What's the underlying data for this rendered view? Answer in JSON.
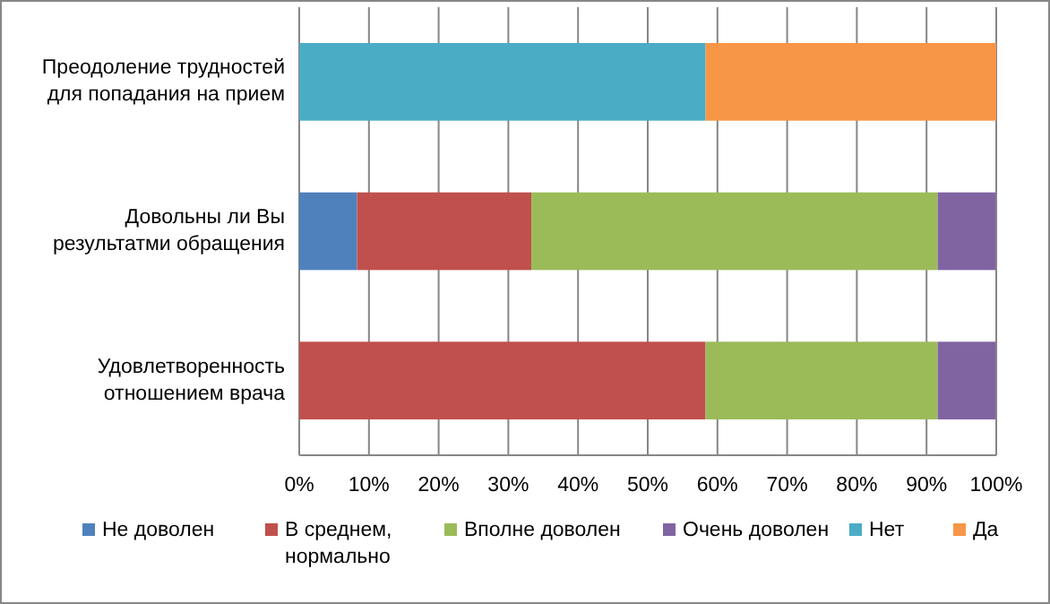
{
  "chart_data": {
    "type": "bar",
    "orientation": "horizontal",
    "stacked": true,
    "categories": [
      "Преодоление трудностей для попадания на прием",
      "Довольны ли Вы результатми обращения",
      "Удовлетворенность отношением врача"
    ],
    "series": [
      {
        "name": "Не доволен",
        "color": "#4f81bd",
        "values": [
          0,
          8.3,
          0
        ]
      },
      {
        "name": "В среднем, нормально",
        "color": "#c0504d",
        "values": [
          0,
          25,
          58.3
        ]
      },
      {
        "name": "Вполне доволен",
        "color": "#9bbb59",
        "values": [
          0,
          58.3,
          33.3
        ]
      },
      {
        "name": "Очень доволен",
        "color": "#8064a2",
        "values": [
          0,
          8.3,
          8.3
        ]
      },
      {
        "name": "Нет",
        "color": "#4bacc6",
        "values": [
          58.3,
          0,
          0
        ]
      },
      {
        "name": "Да",
        "color": "#f79646",
        "values": [
          41.7,
          0,
          0
        ]
      }
    ],
    "xlim": [
      0,
      100
    ],
    "xticks": [
      {
        "value": 0,
        "label": "0%"
      },
      {
        "value": 10,
        "label": "10%"
      },
      {
        "value": 20,
        "label": "20%"
      },
      {
        "value": 30,
        "label": "30%"
      },
      {
        "value": 40,
        "label": "40%"
      },
      {
        "value": 50,
        "label": "50%"
      },
      {
        "value": 60,
        "label": "60%"
      },
      {
        "value": 70,
        "label": "70%"
      },
      {
        "value": 80,
        "label": "80%"
      },
      {
        "value": 90,
        "label": "90%"
      },
      {
        "value": 100,
        "label": "100%"
      }
    ],
    "grid": "x",
    "legend": "bottom"
  }
}
